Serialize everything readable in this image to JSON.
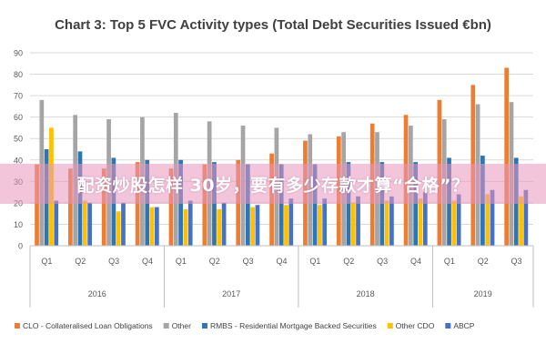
{
  "banner": {
    "text": "配资炒股怎样 30岁，要有多少存款才算“合格”？"
  },
  "chart_data": {
    "type": "bar",
    "title": "Chart 3: Top 5 FVC Activity types (Total Debt Securities Issued €bn)",
    "xlabel": "",
    "ylabel": "",
    "ylim": [
      0,
      90
    ],
    "yticks": [
      0,
      10,
      20,
      30,
      40,
      50,
      60,
      70,
      80,
      90
    ],
    "grid": true,
    "legend_position": "bottom",
    "categories": [
      "Q1",
      "Q2",
      "Q3",
      "Q4",
      "Q1",
      "Q2",
      "Q3",
      "Q4",
      "Q1",
      "Q2",
      "Q3",
      "Q4",
      "Q1",
      "Q2",
      "Q3"
    ],
    "year_groups": [
      {
        "label": "2016",
        "count": 4
      },
      {
        "label": "2017",
        "count": 4
      },
      {
        "label": "2018",
        "count": 4
      },
      {
        "label": "2019",
        "count": 3
      }
    ],
    "series": [
      {
        "name": "CLO - Collateralised Loan Obligations",
        "color": "#ed7d31",
        "values": [
          38,
          36,
          36,
          39,
          36,
          38,
          40,
          43,
          49,
          51,
          57,
          61,
          68,
          75,
          83
        ]
      },
      {
        "name": "Other",
        "color": "#a5a5a5",
        "values": [
          68,
          61,
          59,
          60,
          62,
          58,
          56,
          55,
          52,
          53,
          53,
          56,
          59,
          66,
          67
        ]
      },
      {
        "name": "RMBS - Residential Mortgage Backed Securities",
        "color": "#2e75b6",
        "values": [
          45,
          44,
          41,
          40,
          40,
          39,
          38,
          38,
          38,
          39,
          39,
          39,
          41,
          42,
          41
        ]
      },
      {
        "name": "Other CDO",
        "color": "#ffc000",
        "values": [
          55,
          21,
          16,
          18,
          17,
          17,
          18,
          19,
          19,
          20,
          21,
          22,
          21,
          24,
          23
        ]
      },
      {
        "name": "ABCP",
        "color": "#4472c4",
        "values": [
          21,
          20,
          20,
          18,
          21,
          20,
          19,
          22,
          22,
          23,
          23,
          25,
          24,
          26,
          26
        ]
      }
    ]
  }
}
